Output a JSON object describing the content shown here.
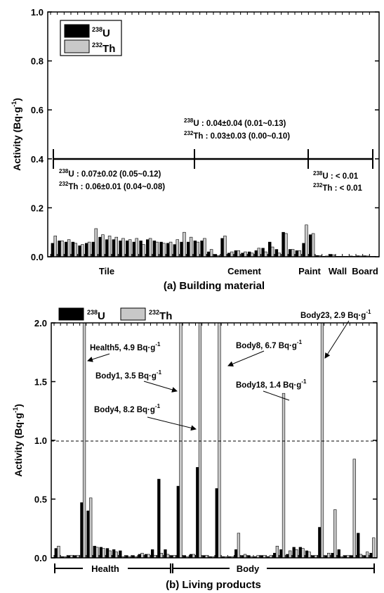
{
  "chart_data": [
    {
      "type": "bar",
      "caption": "(a) Building material",
      "ylabel": "Activity (Bq·g",
      "ylabel_sup": "-1",
      "ylabel_tail": ")",
      "ylim": [
        0,
        1.0
      ],
      "yticks": [
        "0.0",
        "0.2",
        "0.4",
        "0.6",
        "0.8",
        "1.0"
      ],
      "legend": {
        "placement": "top-left",
        "u_label": "U",
        "u_sup": "238",
        "th_label": "Th",
        "th_sup": "232"
      },
      "colors": {
        "u": "#000000",
        "th": "#c8c8c8"
      },
      "category_labels": [
        "Tile",
        "Cement",
        "Paint",
        "Wall",
        "Board"
      ],
      "series": [
        {
          "name": "238U",
          "values": [
            0.055,
            0.065,
            0.06,
            0.06,
            0.045,
            0.055,
            0.06,
            0.08,
            0.07,
            0.07,
            0.065,
            0.065,
            0.06,
            0.065,
            0.07,
            0.065,
            0.06,
            0.055,
            0.05,
            0.06,
            0.06,
            0.065,
            0.065,
            0.02,
            0.01,
            0.075,
            0.015,
            0.025,
            0.015,
            0.02,
            0.025,
            0.035,
            0.06,
            0.03,
            0.1,
            0.03,
            0.025,
            0.055,
            0.09,
            0.005,
            0.002,
            0.01,
            0.002,
            0.002,
            0.003,
            0.004,
            0.004,
            0.002
          ]
        },
        {
          "name": "232Th",
          "values": [
            0.085,
            0.065,
            0.07,
            0.055,
            0.05,
            0.06,
            0.115,
            0.09,
            0.085,
            0.08,
            0.075,
            0.07,
            0.075,
            0.05,
            0.075,
            0.06,
            0.055,
            0.06,
            0.07,
            0.1,
            0.08,
            0.06,
            0.075,
            0.03,
            0.005,
            0.085,
            0.02,
            0.025,
            0.02,
            0.015,
            0.035,
            0.02,
            0.04,
            0.015,
            0.095,
            0.03,
            0.025,
            0.13,
            0.095,
            0.005,
            0.003,
            0.008,
            0.002,
            0.002,
            0.002,
            0.003,
            0.003,
            0.002
          ]
        }
      ],
      "annotations": {
        "tile_u": "U   : 0.07±0.02 (0.05~0.12)",
        "tile_th": "Th : 0.06±0.01 (0.04~0.08)",
        "cement_u": "U   : 0.04±0.04 (0.01~0.13)",
        "cement_th": "Th : 0.03±0.03 (0.00~0.10)",
        "other_u": "U   : < 0.01",
        "other_th": "Th : < 0.01",
        "iso_u": "238",
        "iso_th": "232",
        "range_line_value": 0.4
      }
    },
    {
      "type": "bar",
      "caption": "(b) Living products",
      "ylabel": "Activity (Bq·g",
      "ylabel_sup": "-1",
      "ylabel_tail": ")",
      "ylim": [
        0,
        2.0
      ],
      "yticks": [
        "0.0",
        "0.5",
        "1.0",
        "1.5",
        "2.0"
      ],
      "reference_line": 1.0,
      "legend": {
        "placement": "top-left",
        "u_label": "U",
        "u_sup": "238",
        "th_label": "Th",
        "th_sup": "232"
      },
      "colors": {
        "u": "#000000",
        "th": "#c8c8c8"
      },
      "category_labels": [
        "Health",
        "Body"
      ],
      "series": [
        {
          "name": "238U",
          "values": [
            0.08,
            0.01,
            0.02,
            0.02,
            0.47,
            0.4,
            0.1,
            0.09,
            0.08,
            0.07,
            0.06,
            0.02,
            0.02,
            0.03,
            0.03,
            0.07,
            0.67,
            0.07,
            0.02,
            0.61,
            0.02,
            0.03,
            0.77,
            0.02,
            0.01,
            0.59,
            0.01,
            0.01,
            0.07,
            0.02,
            0.02,
            0.01,
            0.02,
            0.01,
            0.04,
            0.07,
            0.03,
            0.09,
            0.09,
            0.06,
            0.02,
            0.26,
            0.02,
            0.04,
            0.07,
            0.02,
            0.02,
            0.21,
            0.02,
            0.04
          ]
        },
        {
          "name": "232Th",
          "values": [
            0.1,
            0.01,
            0.02,
            0.02,
            2.0,
            0.51,
            0.09,
            0.08,
            0.06,
            0.05,
            0.01,
            0.01,
            0.01,
            0.04,
            0.03,
            0.02,
            0.04,
            0.03,
            0.02,
            2.0,
            0.01,
            0.03,
            2.0,
            0.02,
            0.01,
            2.0,
            0.01,
            0.01,
            0.21,
            0.03,
            0.01,
            0.02,
            0.02,
            0.02,
            0.1,
            1.4,
            0.06,
            0.07,
            0.08,
            0.05,
            0.02,
            2.0,
            0.04,
            0.41,
            0.01,
            0.02,
            0.84,
            0.03,
            0.05,
            0.17
          ]
        }
      ],
      "annotations": [
        {
          "label": "Health5, 4.9 Bq·g",
          "sup": "-1"
        },
        {
          "label": "Body1, 3.5 Bq·g",
          "sup": "-1"
        },
        {
          "label": "Body4, 8.2 Bq·g",
          "sup": "-1"
        },
        {
          "label": "Body8, 6.7 Bq·g",
          "sup": "-1"
        },
        {
          "label": "Body18, 1.4 Bq·g",
          "sup": "-1"
        },
        {
          "label": "Body23, 2.9 Bq·g",
          "sup": "-1"
        }
      ]
    }
  ]
}
